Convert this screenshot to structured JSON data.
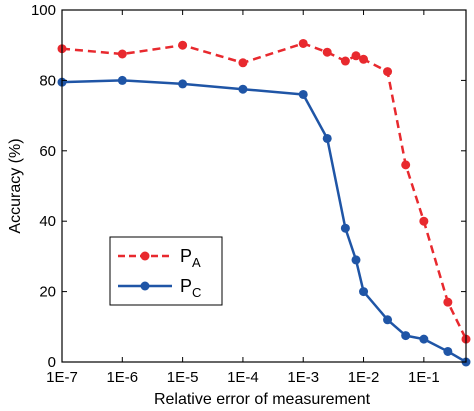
{
  "chart_data": {
    "type": "line",
    "xlabel": "Relative error of measurement",
    "ylabel": "Accuracy (%)",
    "x_scale": "log",
    "xlim": [
      1e-07,
      0.5
    ],
    "ylim": [
      0,
      100
    ],
    "x_ticks": [
      {
        "value": 1e-07,
        "label": "1E-7"
      },
      {
        "value": 1e-06,
        "label": "1E-6"
      },
      {
        "value": 1e-05,
        "label": "1E-5"
      },
      {
        "value": 0.0001,
        "label": "1E-4"
      },
      {
        "value": 0.001,
        "label": "1E-3"
      },
      {
        "value": 0.01,
        "label": "1E-2"
      },
      {
        "value": 0.1,
        "label": "1E-1"
      }
    ],
    "y_ticks": [
      0,
      20,
      40,
      60,
      80,
      100
    ],
    "grid": false,
    "legend_position": "bottom-left",
    "series": [
      {
        "name": "P",
        "subscript": "A",
        "color": "#e8292e",
        "dash": "dashed",
        "x": [
          1e-07,
          1e-06,
          1e-05,
          0.0001,
          0.001,
          0.0025,
          0.005,
          0.0075,
          0.01,
          0.025,
          0.05,
          0.1,
          0.25,
          0.5
        ],
        "y": [
          89,
          87.5,
          90,
          85,
          90.5,
          88,
          85.5,
          87,
          86,
          82.5,
          56,
          40,
          17,
          6.5
        ]
      },
      {
        "name": "P",
        "subscript": "C",
        "color": "#1f55a6",
        "dash": "solid",
        "x": [
          1e-07,
          1e-06,
          1e-05,
          0.0001,
          0.001,
          0.0025,
          0.005,
          0.0075,
          0.01,
          0.025,
          0.05,
          0.1,
          0.25,
          0.5
        ],
        "y": [
          79.5,
          80,
          79,
          77.5,
          76,
          63.5,
          38,
          29,
          20,
          12,
          7.5,
          6.5,
          3,
          0
        ]
      }
    ]
  }
}
